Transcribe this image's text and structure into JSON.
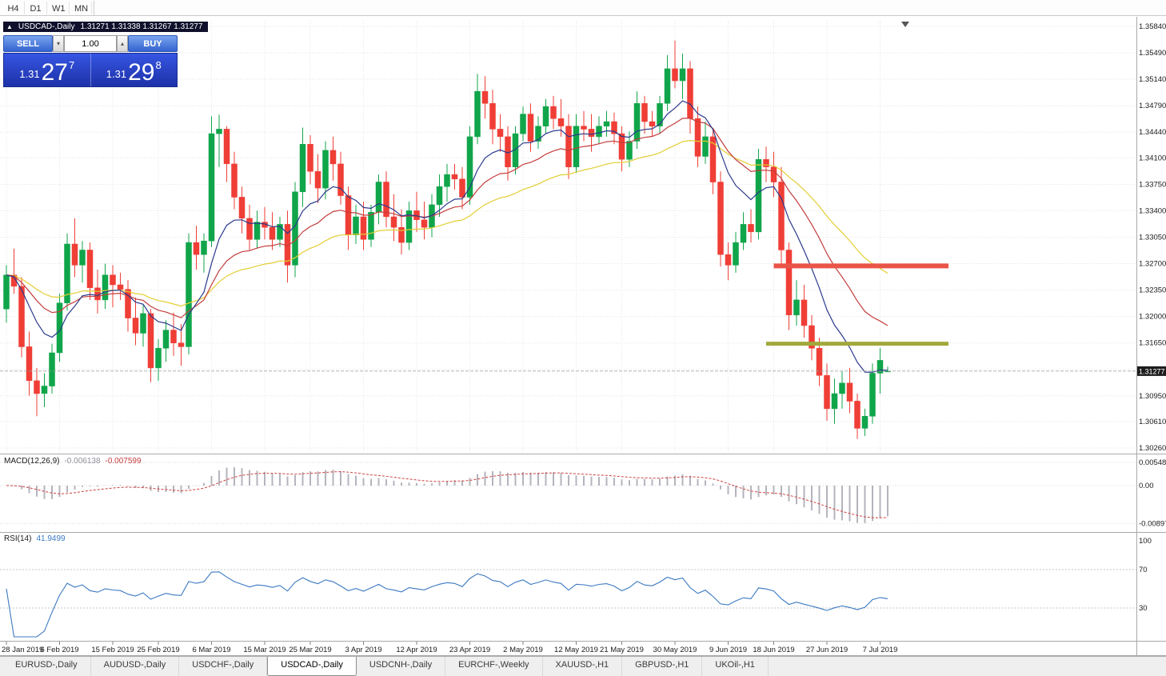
{
  "toolbar": {
    "timeframes": [
      "H4",
      "D1",
      "W1",
      "MN"
    ]
  },
  "chart": {
    "title": "USDCAD-,Daily",
    "ohlc_readout": "1.31271 1.31338 1.31267 1.31277",
    "collapse_icon": "▲"
  },
  "trade_panel": {
    "sell_label": "SELL",
    "buy_label": "BUY",
    "volume": "1.00",
    "spin_down_icon": "▾",
    "spin_up_icon": "▴",
    "sell_price": {
      "prefix": "1.31",
      "big": "27",
      "sup": "7"
    },
    "buy_price": {
      "prefix": "1.31",
      "big": "29",
      "sup": "8"
    }
  },
  "price_axis": {
    "labels": [
      "1.35840",
      "1.35490",
      "1.35140",
      "1.34790",
      "1.34440",
      "1.34100",
      "1.33750",
      "1.33400",
      "1.33050",
      "1.32700",
      "1.32350",
      "1.32000",
      "1.31650",
      "1.31300",
      "1.30950",
      "1.30610",
      "1.30260"
    ],
    "current": "1.31277"
  },
  "indicators": {
    "macd": {
      "label": "MACD(12,26,9)",
      "value": "-0.006138",
      "signal_value": "-0.007599",
      "axis_labels": [
        "0.005484",
        "0.00",
        "-0.008971"
      ]
    },
    "rsi": {
      "label": "RSI(14)",
      "value": "41.9499",
      "axis_labels": [
        "100",
        "70",
        "30"
      ]
    }
  },
  "date_axis": {
    "labels": [
      "28 Jan 2019",
      "6 Feb 2019",
      "15 Feb 2019",
      "25 Feb 2019",
      "6 Mar 2019",
      "15 Mar 2019",
      "25 Mar 2019",
      "3 Apr 2019",
      "12 Apr 2019",
      "23 Apr 2019",
      "2 May 2019",
      "12 May 2019",
      "21 May 2019",
      "30 May 2019",
      "9 Jun 2019",
      "18 Jun 2019",
      "27 Jun 2019",
      "7 Jul 2019"
    ],
    "indices": [
      0,
      7,
      14,
      20,
      27,
      34,
      40,
      47,
      54,
      61,
      68,
      75,
      81,
      88,
      95,
      101,
      108,
      115
    ]
  },
  "tabs": [
    {
      "label": "EURUSD-,Daily",
      "active": false
    },
    {
      "label": "AUDUSD-,Daily",
      "active": false
    },
    {
      "label": "USDCHF-,Daily",
      "active": false
    },
    {
      "label": "USDCAD-,Daily",
      "active": true
    },
    {
      "label": "USDCNH-,Daily",
      "active": false
    },
    {
      "label": "EURCHF-,Weekly",
      "active": false
    },
    {
      "label": "XAUUSD-,H1",
      "active": false
    },
    {
      "label": "GBPUSD-,H1",
      "active": false
    },
    {
      "label": "UKOil-,H1",
      "active": false
    }
  ],
  "colors": {
    "up": "#10A54A",
    "down": "#EF3E36",
    "ma_fast": "#2B3A8C",
    "ma_mid": "#C43D3D",
    "ma_slow": "#E3CE33",
    "macd_hist": "#B4B4BE",
    "macd_signal": "#D04040",
    "rsi": "#3B79C2",
    "resistance": "#EA5348",
    "support": "#A2A93B",
    "grid": "#E4E4E4",
    "bid_line": "#9E9E9E",
    "axis_text": "#1a1a1a"
  },
  "chart_data": {
    "type": "candlestick",
    "symbol": "USDCAD-",
    "timeframe": "Daily",
    "current_bar": {
      "open": 1.31271,
      "high": 1.31338,
      "low": 1.31267,
      "close": 1.31277
    },
    "moving_averages": [
      {
        "method": "ema",
        "period": 40,
        "color_key": "ma_slow"
      },
      {
        "method": "ema",
        "period": 21,
        "color_key": "ma_mid"
      },
      {
        "method": "ema",
        "period": 10,
        "color_key": "ma_fast"
      }
    ],
    "indicator_params": {
      "macd": {
        "fast": 12,
        "slow": 26,
        "signal": 9
      },
      "rsi": {
        "period": 14
      }
    },
    "levels": [
      {
        "name": "resistance-line",
        "price": 1.3267,
        "from_index": 101,
        "to_index": 124,
        "width": 6,
        "color_key": "resistance"
      },
      {
        "name": "support-line",
        "price": 1.3164,
        "from_index": 100,
        "to_index": 124,
        "width": 5,
        "color_key": "support"
      }
    ],
    "candles": [
      [
        "2019-01-28",
        1.321,
        1.3268,
        1.3192,
        1.3255
      ],
      [
        "2019-01-29",
        1.3255,
        1.329,
        1.323,
        1.324
      ],
      [
        "2019-01-30",
        1.324,
        1.3252,
        1.3146,
        1.316
      ],
      [
        "2019-01-31",
        1.316,
        1.318,
        1.3095,
        1.3115
      ],
      [
        "2019-02-01",
        1.3115,
        1.3132,
        1.3068,
        1.3098
      ],
      [
        "2019-02-04",
        1.3098,
        1.3125,
        1.308,
        1.3108
      ],
      [
        "2019-02-05",
        1.3108,
        1.3164,
        1.3098,
        1.3152
      ],
      [
        "2019-02-06",
        1.3152,
        1.323,
        1.314,
        1.3218
      ],
      [
        "2019-02-07",
        1.3218,
        1.331,
        1.3208,
        1.3296
      ],
      [
        "2019-02-08",
        1.3296,
        1.333,
        1.3252,
        1.3268
      ],
      [
        "2019-02-11",
        1.3268,
        1.33,
        1.3245,
        1.3288
      ],
      [
        "2019-02-12",
        1.3288,
        1.3298,
        1.3222,
        1.3238
      ],
      [
        "2019-02-13",
        1.3238,
        1.3262,
        1.3204,
        1.3222
      ],
      [
        "2019-02-14",
        1.3222,
        1.327,
        1.321,
        1.3255
      ],
      [
        "2019-02-15",
        1.3255,
        1.3268,
        1.3212,
        1.3242
      ],
      [
        "2019-02-18",
        1.3242,
        1.3258,
        1.3222,
        1.3236
      ],
      [
        "2019-02-19",
        1.3236,
        1.3248,
        1.318,
        1.3198
      ],
      [
        "2019-02-20",
        1.3198,
        1.3225,
        1.3162,
        1.3178
      ],
      [
        "2019-02-21",
        1.3178,
        1.3215,
        1.316,
        1.3204
      ],
      [
        "2019-02-22",
        1.3204,
        1.321,
        1.3113,
        1.3132
      ],
      [
        "2019-02-25",
        1.3132,
        1.317,
        1.3115,
        1.3158
      ],
      [
        "2019-02-26",
        1.3158,
        1.3195,
        1.314,
        1.3182
      ],
      [
        "2019-02-27",
        1.3182,
        1.3205,
        1.3148,
        1.3165
      ],
      [
        "2019-02-28",
        1.3165,
        1.319,
        1.3135,
        1.316
      ],
      [
        "2019-03-01",
        1.316,
        1.331,
        1.315,
        1.3298
      ],
      [
        "2019-03-04",
        1.3298,
        1.332,
        1.3262,
        1.3282
      ],
      [
        "2019-03-05",
        1.3282,
        1.331,
        1.3258,
        1.33
      ],
      [
        "2019-03-06",
        1.33,
        1.3465,
        1.3292,
        1.3442
      ],
      [
        "2019-03-07",
        1.3442,
        1.3467,
        1.3398,
        1.3448
      ],
      [
        "2019-03-08",
        1.3448,
        1.3452,
        1.3378,
        1.3402
      ],
      [
        "2019-03-11",
        1.3402,
        1.3418,
        1.3342,
        1.3358
      ],
      [
        "2019-03-12",
        1.3358,
        1.3372,
        1.331,
        1.333
      ],
      [
        "2019-03-13",
        1.333,
        1.3348,
        1.3288,
        1.3302
      ],
      [
        "2019-03-14",
        1.3302,
        1.334,
        1.329,
        1.3325
      ],
      [
        "2019-03-15",
        1.3325,
        1.3345,
        1.3302,
        1.3318
      ],
      [
        "2019-03-18",
        1.3318,
        1.3338,
        1.3288,
        1.3302
      ],
      [
        "2019-03-19",
        1.3302,
        1.3332,
        1.3292,
        1.3322
      ],
      [
        "2019-03-20",
        1.3322,
        1.334,
        1.3245,
        1.3268
      ],
      [
        "2019-03-21",
        1.3268,
        1.3378,
        1.3252,
        1.3365
      ],
      [
        "2019-03-22",
        1.3365,
        1.345,
        1.3345,
        1.3428
      ],
      [
        "2019-03-25",
        1.3428,
        1.344,
        1.3375,
        1.3392
      ],
      [
        "2019-03-26",
        1.3392,
        1.3415,
        1.335,
        1.337
      ],
      [
        "2019-03-27",
        1.337,
        1.3432,
        1.3355,
        1.342
      ],
      [
        "2019-03-28",
        1.342,
        1.3438,
        1.338,
        1.3402
      ],
      [
        "2019-03-29",
        1.3402,
        1.3418,
        1.3348,
        1.336
      ],
      [
        "2019-04-01",
        1.336,
        1.3372,
        1.3288,
        1.3308
      ],
      [
        "2019-04-02",
        1.3308,
        1.3348,
        1.3296,
        1.3332
      ],
      [
        "2019-04-03",
        1.3332,
        1.3352,
        1.3288,
        1.3302
      ],
      [
        "2019-04-04",
        1.3302,
        1.3348,
        1.3292,
        1.3338
      ],
      [
        "2019-04-05",
        1.3338,
        1.3388,
        1.3322,
        1.3378
      ],
      [
        "2019-04-08",
        1.3378,
        1.3392,
        1.3318,
        1.3332
      ],
      [
        "2019-04-09",
        1.3332,
        1.3362,
        1.33,
        1.3318
      ],
      [
        "2019-04-10",
        1.3318,
        1.3342,
        1.3282,
        1.3298
      ],
      [
        "2019-04-11",
        1.3298,
        1.3352,
        1.3288,
        1.334
      ],
      [
        "2019-04-12",
        1.334,
        1.3365,
        1.3312,
        1.3328
      ],
      [
        "2019-04-15",
        1.3328,
        1.3352,
        1.3302,
        1.3318
      ],
      [
        "2019-04-16",
        1.3318,
        1.3362,
        1.3305,
        1.3348
      ],
      [
        "2019-04-17",
        1.3348,
        1.3388,
        1.3332,
        1.3372
      ],
      [
        "2019-04-18",
        1.3372,
        1.3402,
        1.3352,
        1.3388
      ],
      [
        "2019-04-19",
        1.3388,
        1.3402,
        1.3368,
        1.3382
      ],
      [
        "2019-04-22",
        1.3382,
        1.3398,
        1.3342,
        1.3358
      ],
      [
        "2019-04-23",
        1.3358,
        1.3452,
        1.3348,
        1.3438
      ],
      [
        "2019-04-24",
        1.3438,
        1.3521,
        1.3428,
        1.3498
      ],
      [
        "2019-04-25",
        1.3498,
        1.3518,
        1.3462,
        1.3482
      ],
      [
        "2019-04-26",
        1.3482,
        1.35,
        1.3428,
        1.3448
      ],
      [
        "2019-04-29",
        1.3448,
        1.3468,
        1.3418,
        1.3438
      ],
      [
        "2019-04-30",
        1.3438,
        1.3452,
        1.338,
        1.3398
      ],
      [
        "2019-05-01",
        1.3398,
        1.3452,
        1.3388,
        1.3442
      ],
      [
        "2019-05-02",
        1.3442,
        1.3478,
        1.3432,
        1.3468
      ],
      [
        "2019-05-03",
        1.3468,
        1.3482,
        1.3418,
        1.3432
      ],
      [
        "2019-05-06",
        1.3432,
        1.3465,
        1.3422,
        1.3452
      ],
      [
        "2019-05-07",
        1.3452,
        1.3488,
        1.3442,
        1.3478
      ],
      [
        "2019-05-08",
        1.3478,
        1.3492,
        1.3448,
        1.3462
      ],
      [
        "2019-05-09",
        1.3462,
        1.3488,
        1.3438,
        1.3452
      ],
      [
        "2019-05-10",
        1.3452,
        1.3468,
        1.3382,
        1.3398
      ],
      [
        "2019-05-13",
        1.3398,
        1.3468,
        1.339,
        1.3452
      ],
      [
        "2019-05-14",
        1.3452,
        1.3472,
        1.3432,
        1.3448
      ],
      [
        "2019-05-15",
        1.3448,
        1.3468,
        1.3418,
        1.3438
      ],
      [
        "2019-05-16",
        1.3438,
        1.3465,
        1.3428,
        1.3452
      ],
      [
        "2019-05-17",
        1.3452,
        1.3472,
        1.3438,
        1.3458
      ],
      [
        "2019-05-20",
        1.3458,
        1.347,
        1.3428,
        1.3442
      ],
      [
        "2019-05-21",
        1.3442,
        1.3452,
        1.3392,
        1.3408
      ],
      [
        "2019-05-22",
        1.3408,
        1.3445,
        1.3398,
        1.3432
      ],
      [
        "2019-05-23",
        1.3432,
        1.3498,
        1.3422,
        1.3482
      ],
      [
        "2019-05-24",
        1.3482,
        1.3492,
        1.3442,
        1.3458
      ],
      [
        "2019-05-27",
        1.3458,
        1.3472,
        1.3438,
        1.3452
      ],
      [
        "2019-05-28",
        1.3452,
        1.3492,
        1.3442,
        1.3482
      ],
      [
        "2019-05-29",
        1.3482,
        1.3546,
        1.3472,
        1.3528
      ],
      [
        "2019-05-30",
        1.3528,
        1.3565,
        1.3502,
        1.3512
      ],
      [
        "2019-05-31",
        1.3512,
        1.3548,
        1.3488,
        1.3528
      ],
      [
        "2019-06-03",
        1.3528,
        1.3538,
        1.3442,
        1.3462
      ],
      [
        "2019-06-04",
        1.3462,
        1.3478,
        1.3398,
        1.3412
      ],
      [
        "2019-06-05",
        1.3412,
        1.3458,
        1.3402,
        1.3438
      ],
      [
        "2019-06-06",
        1.3438,
        1.3448,
        1.3362,
        1.3378
      ],
      [
        "2019-06-07",
        1.3378,
        1.3392,
        1.3266,
        1.3282
      ],
      [
        "2019-06-10",
        1.3282,
        1.3298,
        1.3248,
        1.3268
      ],
      [
        "2019-06-11",
        1.3268,
        1.3312,
        1.3258,
        1.3298
      ],
      [
        "2019-06-12",
        1.3298,
        1.3338,
        1.3288,
        1.3322
      ],
      [
        "2019-06-13",
        1.3322,
        1.3342,
        1.3298,
        1.3312
      ],
      [
        "2019-06-14",
        1.3312,
        1.3422,
        1.3302,
        1.3408
      ],
      [
        "2019-06-17",
        1.3408,
        1.3425,
        1.3378,
        1.3398
      ],
      [
        "2019-06-18",
        1.3398,
        1.3418,
        1.3358,
        1.3378
      ],
      [
        "2019-06-19",
        1.3378,
        1.3398,
        1.3268,
        1.3288
      ],
      [
        "2019-06-20",
        1.3288,
        1.3298,
        1.3182,
        1.3202
      ],
      [
        "2019-06-21",
        1.3202,
        1.3248,
        1.3188,
        1.3222
      ],
      [
        "2019-06-24",
        1.3222,
        1.3242,
        1.3172,
        1.3188
      ],
      [
        "2019-06-25",
        1.3188,
        1.3202,
        1.3142,
        1.3158
      ],
      [
        "2019-06-26",
        1.3158,
        1.3172,
        1.3108,
        1.3122
      ],
      [
        "2019-06-27",
        1.3122,
        1.3138,
        1.3062,
        1.3078
      ],
      [
        "2019-06-28",
        1.3078,
        1.3118,
        1.3058,
        1.3098
      ],
      [
        "2019-07-01",
        1.3098,
        1.3128,
        1.3078,
        1.3112
      ],
      [
        "2019-07-02",
        1.3112,
        1.3132,
        1.3072,
        1.3088
      ],
      [
        "2019-07-03",
        1.3088,
        1.3098,
        1.3038,
        1.3052
      ],
      [
        "2019-07-04",
        1.3052,
        1.3078,
        1.3042,
        1.3068
      ],
      [
        "2019-07-05",
        1.3068,
        1.3138,
        1.3058,
        1.3125
      ],
      [
        "2019-07-08",
        1.3125,
        1.3158,
        1.3098,
        1.3142
      ],
      [
        "2019-07-09",
        1.31271,
        1.31338,
        1.31267,
        1.31277
      ]
    ]
  }
}
